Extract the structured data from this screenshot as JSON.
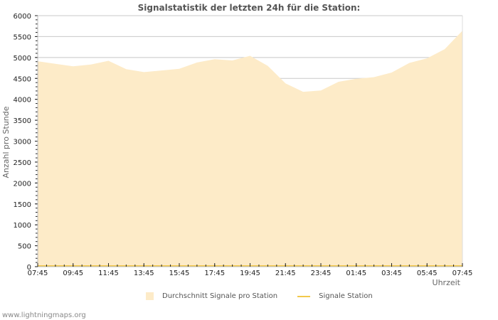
{
  "title": "Signalstatistik der letzten 24h für die Station:",
  "watermark": "www.lightningmaps.org",
  "colors": {
    "area": "#fdebc8",
    "line": "#f2c94c",
    "grid": "#c8c8c8",
    "axis": "#bbbbbb"
  },
  "legend": [
    {
      "label": "Durchschnitt Signale pro Station",
      "type": "area"
    },
    {
      "label": "Signale Station",
      "type": "line"
    }
  ],
  "chart_data": {
    "type": "area",
    "title": "Signalstatistik der letzten 24h für die Station:",
    "xlabel": "Uhrzeit",
    "ylabel": "Anzahl pro Stunde",
    "ylim": [
      0,
      6000
    ],
    "yticks": [
      0,
      500,
      1000,
      1500,
      2000,
      2500,
      3000,
      3500,
      4000,
      4500,
      5000,
      5500,
      6000
    ],
    "xtick_labels": [
      "07:45",
      "09:45",
      "11:45",
      "13:45",
      "15:45",
      "17:45",
      "19:45",
      "21:45",
      "23:45",
      "01:45",
      "03:45",
      "05:45",
      "07:45"
    ],
    "grid": true,
    "legend_position": "bottom",
    "x": [
      "07:45",
      "08:45",
      "09:45",
      "10:45",
      "11:45",
      "12:45",
      "13:45",
      "14:45",
      "15:45",
      "16:45",
      "17:45",
      "18:45",
      "19:45",
      "20:45",
      "21:45",
      "22:45",
      "23:45",
      "00:45",
      "01:45",
      "02:45",
      "03:45",
      "04:45",
      "05:45",
      "06:45",
      "07:45"
    ],
    "series": [
      {
        "name": "Durchschnitt Signale pro Station",
        "type": "area",
        "values": [
          4910,
          4850,
          4790,
          4830,
          4920,
          4720,
          4650,
          4690,
          4730,
          4880,
          4960,
          4930,
          5040,
          4800,
          4380,
          4180,
          4210,
          4420,
          4490,
          4530,
          4640,
          4870,
          4980,
          5200,
          5640
        ]
      },
      {
        "name": "Signale Station",
        "type": "line",
        "values": [
          0,
          0,
          0,
          0,
          0,
          0,
          0,
          0,
          0,
          0,
          0,
          0,
          0,
          0,
          0,
          0,
          0,
          0,
          0,
          0,
          0,
          0,
          0,
          0,
          0
        ]
      }
    ]
  }
}
